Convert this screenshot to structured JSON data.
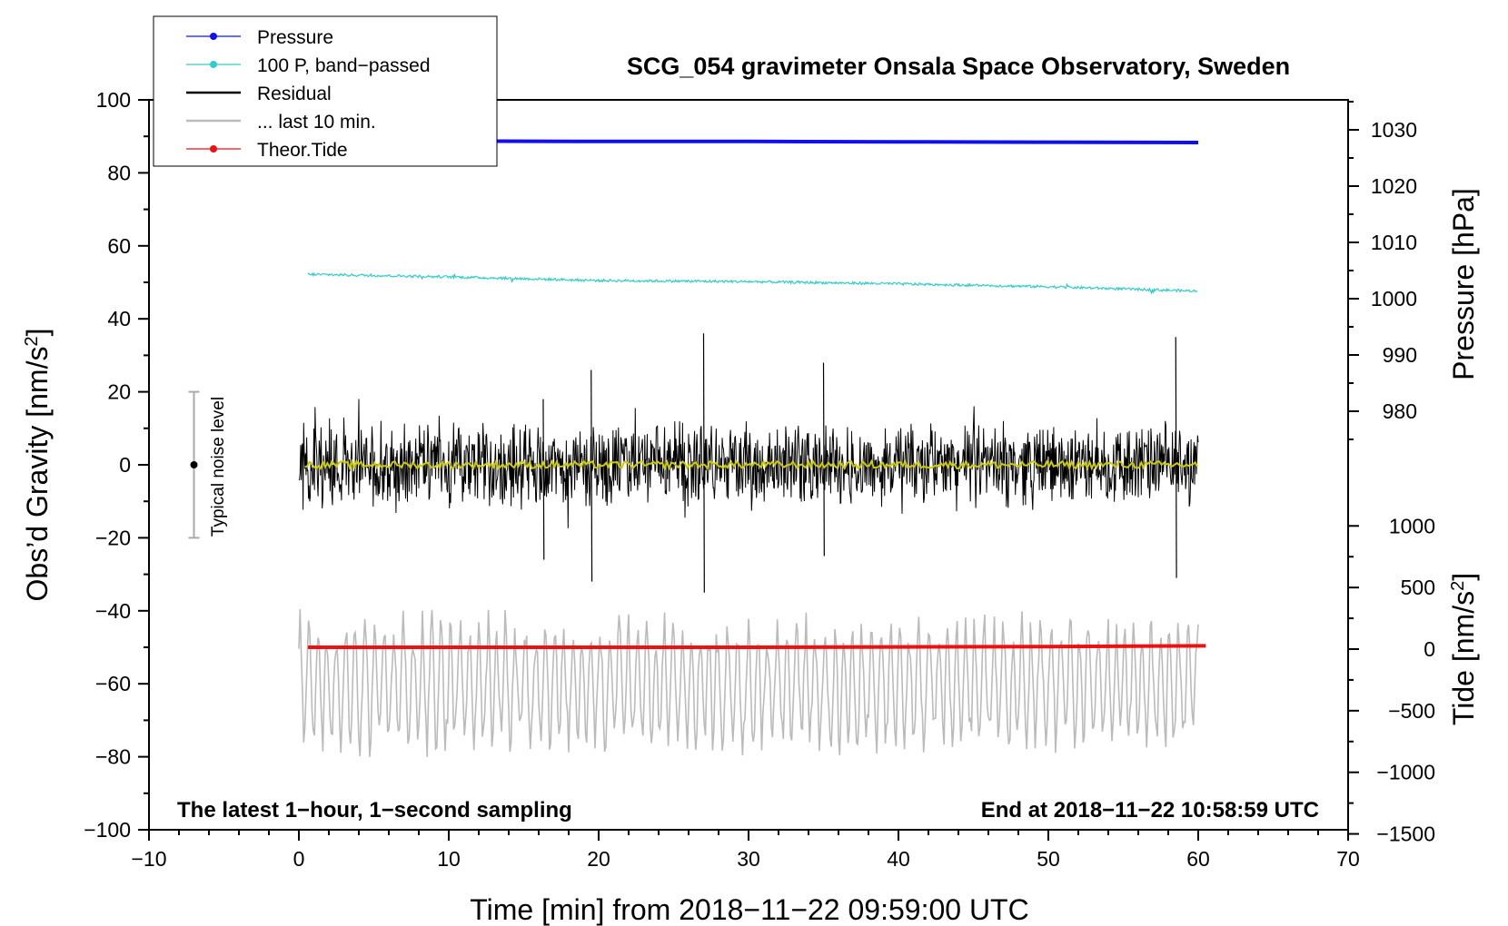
{
  "chart_data": {
    "type": "line",
    "title": "SCG_054 gravimeter Onsala Space Observatory, Sweden",
    "xlabel": "Time [min] from 2018−11−22 09:59:00 UTC",
    "ylabel_left": "Obs’d Gravity [nm/s",
    "ylabel_left_sup": "2",
    "ylabel_left_close": "]",
    "ylabel_pressure": "Pressure [hPa]",
    "ylabel_tide": "Tide [nm/s",
    "ylabel_tide_sup": "2",
    "ylabel_tide_close": "]",
    "xlim": [
      -10,
      70
    ],
    "ylim_left": [
      -100,
      100
    ],
    "pressure_axis_range": [
      970,
      1035
    ],
    "tide_axis_range": [
      -1500,
      1500
    ],
    "x_ticks": [
      -10,
      0,
      10,
      20,
      30,
      40,
      50,
      60,
      70
    ],
    "x_tick_labels": [
      "−10",
      "0",
      "10",
      "20",
      "30",
      "40",
      "50",
      "60",
      "70"
    ],
    "y_left_ticks": [
      -100,
      -80,
      -60,
      -40,
      -20,
      0,
      20,
      40,
      60,
      80,
      100
    ],
    "y_left_tick_labels": [
      "−100",
      "−80",
      "−60",
      "−40",
      "−20",
      "0",
      "20",
      "40",
      "60",
      "80",
      "100"
    ],
    "pressure_ticks": [
      980,
      990,
      1000,
      1010,
      1020,
      1030
    ],
    "pressure_tick_labels": [
      "980",
      "990",
      "1000",
      "1010",
      "1020",
      "1030"
    ],
    "tide_ticks": [
      -1500,
      -1000,
      -500,
      0,
      500,
      1000
    ],
    "tide_tick_labels": [
      "−1500",
      "−1000",
      "−500",
      "0",
      "500",
      "1000"
    ],
    "legend": [
      {
        "label": "Pressure",
        "color": "#1010ee",
        "marker": true
      },
      {
        "label": "100 P, band−passed",
        "color": "#33cccc",
        "marker": true
      },
      {
        "label": "Residual",
        "color": "#000000",
        "marker": false
      },
      {
        "label": "... last 10 min.",
        "color": "#bbbbbb",
        "marker": false
      },
      {
        "label": "Theor.Tide",
        "color": "#ee1111",
        "marker": true
      }
    ],
    "annotations": {
      "left": "The latest 1−hour, 1−second sampling",
      "right": "End at 2018−11−22 10:58:59 UTC",
      "noise": "Typical noise level"
    },
    "noise_bar": {
      "x": -7,
      "center": 0,
      "low": -20,
      "high": 20
    },
    "series": [
      {
        "name": "Pressure",
        "color": "#1010ee",
        "x": [
          0.6,
          10,
          20,
          30,
          40,
          50,
          60
        ],
        "y": [
          88.8,
          88.7,
          88.6,
          88.6,
          88.5,
          88.4,
          88.3
        ]
      },
      {
        "name": "100 P, band-passed",
        "color": "#33cccc",
        "x": [
          0.6,
          10,
          20,
          30,
          40,
          50,
          60
        ],
        "y": [
          52.2,
          51.5,
          50.5,
          50.2,
          49.6,
          48.8,
          47.6
        ]
      },
      {
        "name": "Residual",
        "color": "#000000",
        "x_range": [
          0,
          60
        ],
        "envelope": 13,
        "spikes": [
          [
            27,
            36,
            -35
          ],
          [
            19.5,
            26,
            -32
          ],
          [
            58.5,
            35,
            -31
          ],
          [
            16.3,
            18,
            -26
          ],
          [
            35,
            28,
            -25
          ]
        ]
      },
      {
        "name": "Residual mean",
        "color": "#cccc00",
        "x_range": [
          0,
          60
        ],
        "y": 0
      },
      {
        "name": "... last 10 min.",
        "color": "#bbbbbb",
        "x_range": [
          0,
          60
        ],
        "center": -60,
        "amplitude": 16
      },
      {
        "name": "Theor.Tide",
        "color": "#ee1111",
        "x": [
          0.6,
          10,
          20,
          30,
          40,
          50,
          60.5
        ],
        "y": [
          -50,
          -50,
          -50,
          -50,
          -49.9,
          -49.8,
          -49.6
        ]
      }
    ]
  }
}
